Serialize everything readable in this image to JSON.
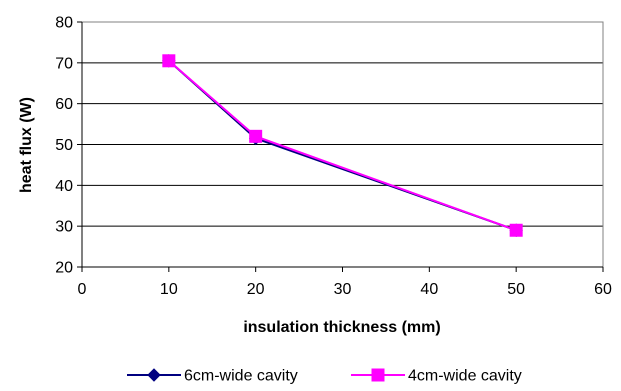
{
  "chart_data": {
    "type": "line",
    "title": "",
    "xlabel": "insulation thickness (mm)",
    "ylabel": "heat flux (W)",
    "xlim": [
      0,
      60
    ],
    "ylim": [
      20,
      80
    ],
    "xticks": [
      "0",
      "10",
      "20",
      "30",
      "40",
      "50",
      "60"
    ],
    "yticks": [
      "20",
      "30",
      "40",
      "50",
      "60",
      "70",
      "80"
    ],
    "grid": "horizontal",
    "legend": "bottom",
    "series": [
      {
        "name": "6cm-wide cavity",
        "color": "#000080",
        "marker": "diamond",
        "x": [
          10,
          20,
          50
        ],
        "y": [
          70.5,
          51.5,
          29
        ]
      },
      {
        "name": "4cm-wide cavity",
        "color": "#FF00FF",
        "marker": "square",
        "x": [
          10,
          20,
          50
        ],
        "y": [
          70.5,
          52,
          29
        ]
      }
    ]
  }
}
